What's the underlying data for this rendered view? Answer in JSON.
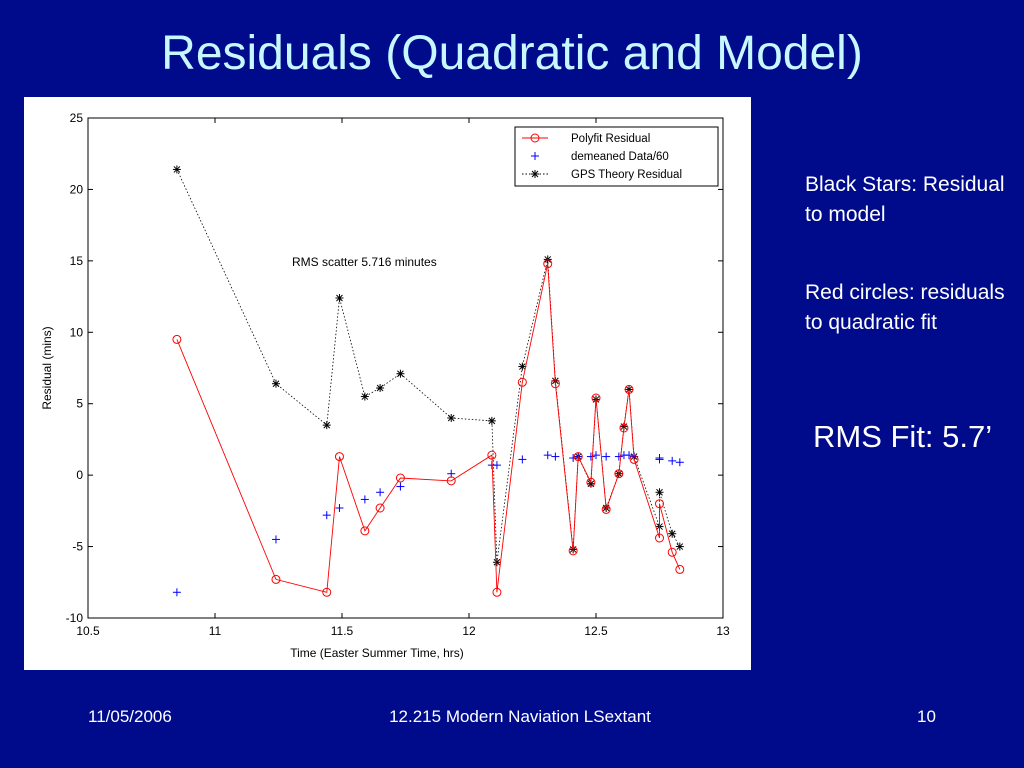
{
  "slide": {
    "title": "Residuals (Quadratic and Model)",
    "note_1": "Black Stars: Residual to model",
    "note_2": "Red circles: residuals to quadratic fit",
    "rms_note": "RMS Fit: 5.7’"
  },
  "footer": {
    "date": "11/05/2006",
    "course": "12.215 Modern Naviation LSextant",
    "page": "10"
  },
  "chart_data": {
    "type": "line",
    "title": "",
    "xlabel": "Time (Easter Summer Time, hrs)",
    "ylabel": "Residual (mins)",
    "xlim": [
      10.5,
      13
    ],
    "ylim": [
      -10,
      25
    ],
    "x_ticks": [
      10.5,
      11,
      11.5,
      12,
      12.5,
      13
    ],
    "x_tick_labels": [
      "10.5",
      "11",
      "11.5",
      "12",
      "12.5",
      "13"
    ],
    "y_ticks": [
      -10,
      -5,
      0,
      5,
      10,
      15,
      20,
      25
    ],
    "y_tick_labels": [
      "-10",
      "-5",
      "0",
      "5",
      "10",
      "15",
      "20",
      "25"
    ],
    "grid": false,
    "legend_position": "top-right",
    "annotation": "RMS scatter  5.716 minutes",
    "series": [
      {
        "name": "Polyfit Residual",
        "color": "#ff0000",
        "marker": "circle",
        "line": "solid",
        "points": [
          [
            10.85,
            9.5
          ],
          [
            11.24,
            -7.3
          ],
          [
            11.44,
            -8.2
          ],
          [
            11.49,
            1.3
          ],
          [
            11.59,
            -3.9
          ],
          [
            11.65,
            -2.3
          ],
          [
            11.73,
            -0.2
          ],
          [
            11.93,
            -0.4
          ],
          [
            12.09,
            1.4
          ],
          [
            12.11,
            -8.2
          ],
          [
            12.21,
            6.5
          ],
          [
            12.31,
            14.8
          ],
          [
            12.34,
            6.4
          ],
          [
            12.41,
            -5.3
          ],
          [
            12.43,
            1.3
          ],
          [
            12.48,
            -0.5
          ],
          [
            12.5,
            5.4
          ],
          [
            12.54,
            -2.4
          ],
          [
            12.59,
            0.1
          ],
          [
            12.61,
            3.3
          ],
          [
            12.63,
            6.0
          ],
          [
            12.65,
            1.1
          ],
          [
            12.75,
            -4.4
          ],
          [
            12.75,
            -2.0
          ],
          [
            12.8,
            -5.4
          ],
          [
            12.83,
            -6.6
          ]
        ]
      },
      {
        "name": "demeaned Data/60",
        "color": "#0000ff",
        "marker": "plus",
        "line": "none",
        "points": [
          [
            10.85,
            -8.2
          ],
          [
            11.24,
            -4.5
          ],
          [
            11.44,
            -2.8
          ],
          [
            11.49,
            -2.3
          ],
          [
            11.59,
            -1.7
          ],
          [
            11.65,
            -1.2
          ],
          [
            11.73,
            -0.8
          ],
          [
            11.93,
            0.1
          ],
          [
            12.09,
            0.7
          ],
          [
            12.11,
            0.7
          ],
          [
            12.21,
            1.1
          ],
          [
            12.31,
            1.4
          ],
          [
            12.34,
            1.3
          ],
          [
            12.41,
            1.2
          ],
          [
            12.43,
            1.3
          ],
          [
            12.48,
            1.3
          ],
          [
            12.5,
            1.4
          ],
          [
            12.54,
            1.3
          ],
          [
            12.59,
            1.3
          ],
          [
            12.61,
            1.4
          ],
          [
            12.63,
            1.4
          ],
          [
            12.65,
            1.3
          ],
          [
            12.75,
            1.2
          ],
          [
            12.75,
            1.1
          ],
          [
            12.8,
            1.0
          ],
          [
            12.83,
            0.9
          ]
        ]
      },
      {
        "name": "GPS Theory Residual",
        "color": "#000000",
        "marker": "star",
        "line": "dotted",
        "points": [
          [
            10.85,
            21.4
          ],
          [
            11.24,
            6.4
          ],
          [
            11.44,
            3.5
          ],
          [
            11.49,
            12.4
          ],
          [
            11.59,
            5.5
          ],
          [
            11.65,
            6.1
          ],
          [
            11.73,
            7.1
          ],
          [
            11.93,
            4.0
          ],
          [
            12.09,
            3.8
          ],
          [
            12.11,
            -6.1
          ],
          [
            12.21,
            7.6
          ],
          [
            12.31,
            15.1
          ],
          [
            12.34,
            6.6
          ],
          [
            12.41,
            -5.2
          ],
          [
            12.43,
            1.3
          ],
          [
            12.48,
            -0.6
          ],
          [
            12.5,
            5.3
          ],
          [
            12.54,
            -2.3
          ],
          [
            12.59,
            0.1
          ],
          [
            12.61,
            3.4
          ],
          [
            12.63,
            6.0
          ],
          [
            12.65,
            1.3
          ],
          [
            12.75,
            -3.6
          ],
          [
            12.75,
            -1.2
          ],
          [
            12.8,
            -4.1
          ],
          [
            12.83,
            -5.0
          ]
        ]
      }
    ]
  }
}
